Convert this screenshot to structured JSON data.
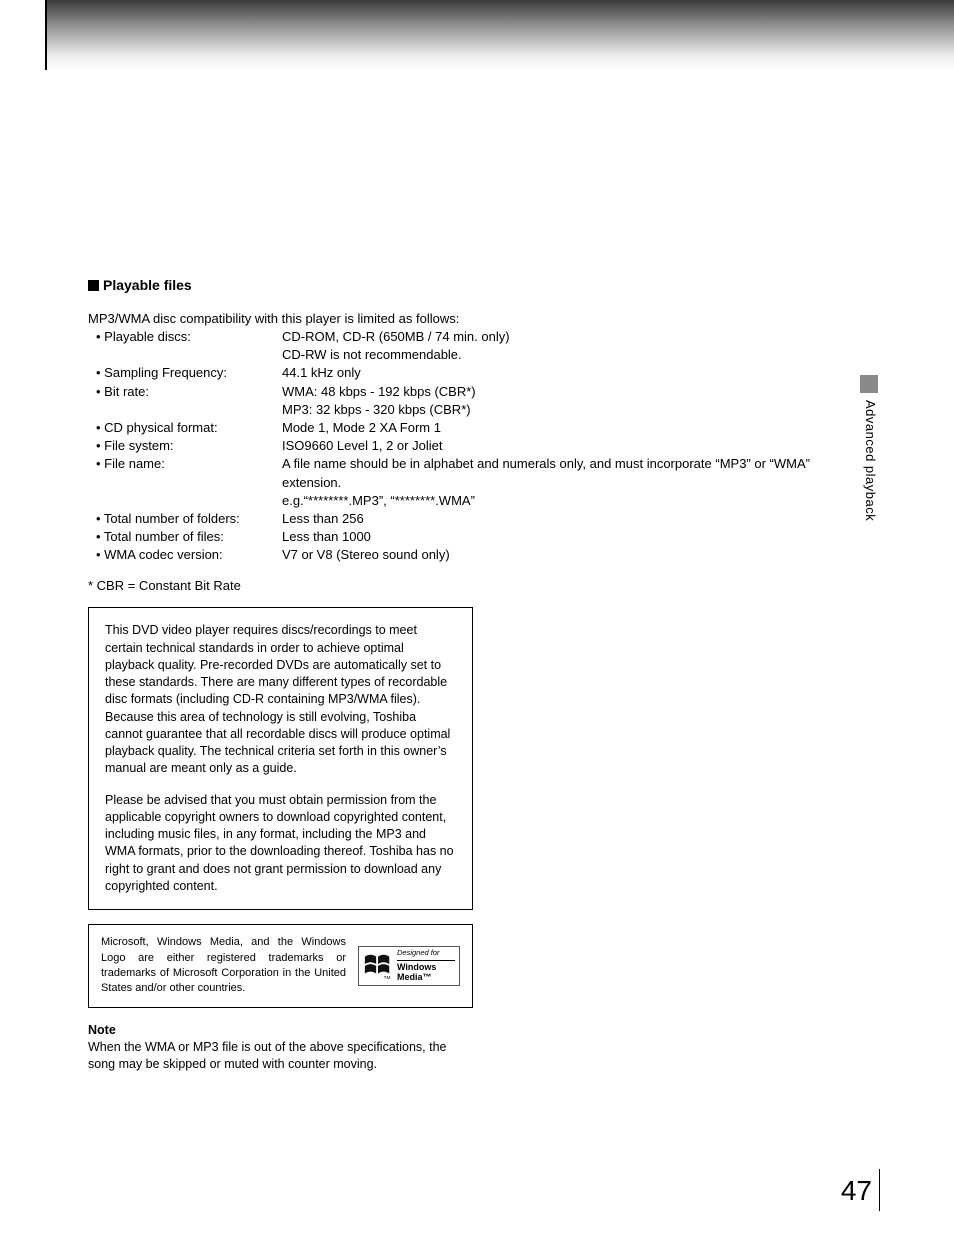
{
  "sideLabel": "Advanced playback",
  "sectionTitle": "Playable files",
  "intro": "MP3/WMA disc compatibility with this player is limited as follows:",
  "specs": [
    {
      "label": "• Playable discs:",
      "lines": [
        "CD-ROM, CD-R (650MB / 74 min. only)",
        "CD-RW is not recommendable."
      ]
    },
    {
      "label": "• Sampling Frequency:",
      "lines": [
        "44.1 kHz only"
      ]
    },
    {
      "label": "• Bit rate:",
      "lines": [
        "WMA: 48 kbps - 192 kbps (CBR*)",
        "MP3: 32 kbps - 320 kbps (CBR*)"
      ]
    },
    {
      "label": "• CD physical format:",
      "lines": [
        "Mode 1, Mode 2 XA Form 1"
      ]
    },
    {
      "label": "• File system:",
      "lines": [
        "ISO9660 Level 1, 2 or Joliet"
      ]
    },
    {
      "label": "• File name:",
      "lines": [
        "A file name should be in alphabet and numerals only, and must incorporate “MP3” or “WMA” extension.",
        "e.g.“********.MP3”, “********.WMA”"
      ]
    },
    {
      "label": "• Total number of folders:",
      "lines": [
        "Less than 256"
      ]
    },
    {
      "label": "• Total number of files:",
      "lines": [
        "Less than 1000"
      ]
    },
    {
      "label": "• WMA codec version:",
      "lines": [
        "V7 or V8 (Stereo sound only)"
      ]
    }
  ],
  "footnote": "* CBR = Constant Bit Rate",
  "box1": {
    "p1": "This DVD video player requires discs/recordings to meet certain technical standards in order to achieve optimal playback quality.  Pre-recorded DVDs are automatically set to these standards. There are many different types of recordable disc formats (including CD-R containing MP3/WMA files).  Because this area of technology is still evolving, Toshiba cannot guarantee that all recordable discs will produce optimal playback quality. The technical criteria set forth in this owner’s manual are meant only as a guide.",
    "p2": "Please be advised that you must obtain permission from the applicable copyright owners to download copyrighted content, including music files, in any format, including the MP3 and WMA formats, prior to the downloading thereof. Toshiba has no right to grant and does not grant permission to download any copyrighted content."
  },
  "box2": {
    "text": "Microsoft, Windows Media, and the Windows Logo are either registered trademarks or trademarks of Microsoft Corporation in the United States and/or other countries.",
    "logo": {
      "designedFor": "Designed for",
      "windows": "Windows",
      "media": "Media™"
    }
  },
  "note": {
    "heading": "Note",
    "body": "When the WMA or MP3 file is out of the above specifications, the song may be skipped or muted with counter moving."
  },
  "pageNumber": "47"
}
